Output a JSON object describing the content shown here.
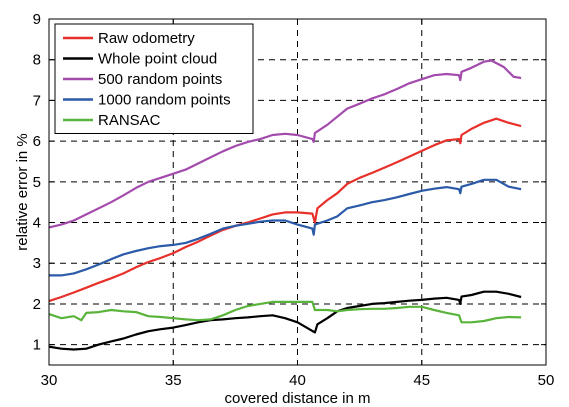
{
  "chart_data": {
    "type": "line",
    "title": "",
    "xlabel": "covered distance in m",
    "ylabel": "relative error in %",
    "xlim": [
      30,
      50
    ],
    "ylim": [
      0.5,
      9
    ],
    "x_ticks": [
      "30",
      "35",
      "40",
      "45",
      "50"
    ],
    "y_ticks": [
      "1",
      "2",
      "3",
      "4",
      "5",
      "6",
      "7",
      "8",
      "9"
    ],
    "x_tick_values": [
      30,
      35,
      40,
      45,
      50
    ],
    "y_tick_values": [
      1,
      2,
      3,
      4,
      5,
      6,
      7,
      8,
      9
    ],
    "grid": true,
    "grid_style": "dashed",
    "legend_position": "top-left",
    "series": [
      {
        "name": "Raw odometry",
        "color": "#e8302a",
        "points": [
          [
            30,
            2.07
          ],
          [
            30.5,
            2.17
          ],
          [
            31,
            2.28
          ],
          [
            31.5,
            2.4
          ],
          [
            32,
            2.52
          ],
          [
            32.5,
            2.63
          ],
          [
            33,
            2.75
          ],
          [
            33.5,
            2.9
          ],
          [
            34,
            3.03
          ],
          [
            34.5,
            3.13
          ],
          [
            35,
            3.25
          ],
          [
            35.5,
            3.4
          ],
          [
            36,
            3.53
          ],
          [
            36.5,
            3.68
          ],
          [
            37,
            3.82
          ],
          [
            37.5,
            3.92
          ],
          [
            38,
            4.0
          ],
          [
            38.5,
            4.1
          ],
          [
            39,
            4.2
          ],
          [
            39.5,
            4.25
          ],
          [
            40,
            4.25
          ],
          [
            40.6,
            4.22
          ],
          [
            40.7,
            4.0
          ],
          [
            40.8,
            4.35
          ],
          [
            41.2,
            4.55
          ],
          [
            41.6,
            4.72
          ],
          [
            42,
            4.95
          ],
          [
            42.5,
            5.1
          ],
          [
            43,
            5.22
          ],
          [
            43.5,
            5.35
          ],
          [
            44,
            5.48
          ],
          [
            44.5,
            5.62
          ],
          [
            45,
            5.76
          ],
          [
            45.5,
            5.9
          ],
          [
            46,
            6.02
          ],
          [
            46.5,
            6.05
          ],
          [
            46.55,
            5.95
          ],
          [
            46.6,
            6.15
          ],
          [
            47,
            6.3
          ],
          [
            47.5,
            6.45
          ],
          [
            48,
            6.55
          ],
          [
            48.5,
            6.45
          ],
          [
            49,
            6.37
          ]
        ]
      },
      {
        "name": "Whole point cloud",
        "color": "#000000",
        "points": [
          [
            30,
            0.95
          ],
          [
            30.5,
            0.9
          ],
          [
            31,
            0.88
          ],
          [
            31.5,
            0.9
          ],
          [
            32,
            1.0
          ],
          [
            32.5,
            1.08
          ],
          [
            33,
            1.15
          ],
          [
            33.5,
            1.25
          ],
          [
            34,
            1.33
          ],
          [
            34.5,
            1.38
          ],
          [
            35,
            1.42
          ],
          [
            35.5,
            1.48
          ],
          [
            36,
            1.55
          ],
          [
            36.5,
            1.6
          ],
          [
            37,
            1.62
          ],
          [
            37.5,
            1.65
          ],
          [
            38,
            1.67
          ],
          [
            38.5,
            1.7
          ],
          [
            39,
            1.72
          ],
          [
            39.5,
            1.65
          ],
          [
            40,
            1.55
          ],
          [
            40.7,
            1.3
          ],
          [
            40.8,
            1.5
          ],
          [
            41.2,
            1.65
          ],
          [
            41.6,
            1.82
          ],
          [
            42,
            1.9
          ],
          [
            42.5,
            1.95
          ],
          [
            43,
            2.0
          ],
          [
            43.5,
            2.02
          ],
          [
            44,
            2.05
          ],
          [
            44.5,
            2.08
          ],
          [
            45,
            2.1
          ],
          [
            45.5,
            2.13
          ],
          [
            46,
            2.15
          ],
          [
            46.5,
            2.1
          ],
          [
            46.55,
            2.0
          ],
          [
            46.6,
            2.18
          ],
          [
            47,
            2.22
          ],
          [
            47.5,
            2.3
          ],
          [
            48,
            2.3
          ],
          [
            48.5,
            2.25
          ],
          [
            49,
            2.17
          ]
        ]
      },
      {
        "name": "500 random points",
        "color": "#a34aad",
        "points": [
          [
            30,
            3.88
          ],
          [
            30.5,
            3.95
          ],
          [
            31,
            4.05
          ],
          [
            31.5,
            4.2
          ],
          [
            32,
            4.35
          ],
          [
            32.5,
            4.5
          ],
          [
            33,
            4.67
          ],
          [
            33.5,
            4.85
          ],
          [
            34,
            5.0
          ],
          [
            34.5,
            5.1
          ],
          [
            35,
            5.2
          ],
          [
            35.5,
            5.3
          ],
          [
            36,
            5.45
          ],
          [
            36.5,
            5.6
          ],
          [
            37,
            5.75
          ],
          [
            37.5,
            5.88
          ],
          [
            38,
            5.98
          ],
          [
            38.5,
            6.05
          ],
          [
            39,
            6.15
          ],
          [
            39.5,
            6.18
          ],
          [
            40,
            6.15
          ],
          [
            40.6,
            6.05
          ],
          [
            40.65,
            5.98
          ],
          [
            40.7,
            6.2
          ],
          [
            41.2,
            6.4
          ],
          [
            41.6,
            6.6
          ],
          [
            42,
            6.8
          ],
          [
            42.5,
            6.92
          ],
          [
            43,
            7.05
          ],
          [
            43.5,
            7.15
          ],
          [
            44,
            7.28
          ],
          [
            44.5,
            7.42
          ],
          [
            45,
            7.52
          ],
          [
            45.5,
            7.62
          ],
          [
            46,
            7.65
          ],
          [
            46.5,
            7.62
          ],
          [
            46.55,
            7.5
          ],
          [
            46.6,
            7.7
          ],
          [
            47,
            7.8
          ],
          [
            47.5,
            7.95
          ],
          [
            47.8,
            7.98
          ],
          [
            48.3,
            7.82
          ],
          [
            48.7,
            7.58
          ],
          [
            49,
            7.55
          ]
        ]
      },
      {
        "name": "1000 random points",
        "color": "#2b5aa8",
        "points": [
          [
            30,
            2.7
          ],
          [
            30.5,
            2.7
          ],
          [
            31,
            2.75
          ],
          [
            31.5,
            2.85
          ],
          [
            32,
            2.97
          ],
          [
            32.5,
            3.1
          ],
          [
            33,
            3.22
          ],
          [
            33.5,
            3.3
          ],
          [
            34,
            3.37
          ],
          [
            34.5,
            3.42
          ],
          [
            35,
            3.45
          ],
          [
            35.5,
            3.5
          ],
          [
            36,
            3.6
          ],
          [
            36.5,
            3.72
          ],
          [
            37,
            3.85
          ],
          [
            37.5,
            3.92
          ],
          [
            38,
            3.97
          ],
          [
            38.5,
            4.02
          ],
          [
            39,
            4.05
          ],
          [
            39.5,
            4.05
          ],
          [
            40,
            3.95
          ],
          [
            40.6,
            3.85
          ],
          [
            40.65,
            3.7
          ],
          [
            40.7,
            3.95
          ],
          [
            41.2,
            4.05
          ],
          [
            41.6,
            4.15
          ],
          [
            42,
            4.35
          ],
          [
            42.5,
            4.42
          ],
          [
            43,
            4.5
          ],
          [
            43.5,
            4.55
          ],
          [
            44,
            4.62
          ],
          [
            44.5,
            4.7
          ],
          [
            45,
            4.78
          ],
          [
            45.5,
            4.83
          ],
          [
            46,
            4.87
          ],
          [
            46.5,
            4.82
          ],
          [
            46.55,
            4.72
          ],
          [
            46.6,
            4.88
          ],
          [
            47,
            4.95
          ],
          [
            47.5,
            5.05
          ],
          [
            48,
            5.05
          ],
          [
            48.5,
            4.88
          ],
          [
            49,
            4.82
          ]
        ]
      },
      {
        "name": "RANSAC",
        "color": "#5ab43c",
        "points": [
          [
            30,
            1.75
          ],
          [
            30.5,
            1.65
          ],
          [
            31,
            1.7
          ],
          [
            31.3,
            1.6
          ],
          [
            31.5,
            1.78
          ],
          [
            32,
            1.8
          ],
          [
            32.5,
            1.85
          ],
          [
            33,
            1.82
          ],
          [
            33.5,
            1.8
          ],
          [
            34,
            1.7
          ],
          [
            34.5,
            1.68
          ],
          [
            35,
            1.65
          ],
          [
            35.5,
            1.62
          ],
          [
            36,
            1.6
          ],
          [
            36.5,
            1.62
          ],
          [
            37,
            1.72
          ],
          [
            37.5,
            1.85
          ],
          [
            38,
            1.95
          ],
          [
            38.5,
            2.0
          ],
          [
            39,
            2.05
          ],
          [
            39.5,
            2.05
          ],
          [
            40,
            2.05
          ],
          [
            40.6,
            2.05
          ],
          [
            40.7,
            1.85
          ],
          [
            41.2,
            1.85
          ],
          [
            41.6,
            1.82
          ],
          [
            42,
            1.85
          ],
          [
            42.5,
            1.87
          ],
          [
            43,
            1.88
          ],
          [
            43.5,
            1.88
          ],
          [
            44,
            1.9
          ],
          [
            44.5,
            1.93
          ],
          [
            45,
            1.93
          ],
          [
            45.5,
            1.85
          ],
          [
            46,
            1.78
          ],
          [
            46.5,
            1.72
          ],
          [
            46.6,
            1.55
          ],
          [
            47,
            1.55
          ],
          [
            47.5,
            1.58
          ],
          [
            48,
            1.65
          ],
          [
            48.5,
            1.68
          ],
          [
            49,
            1.67
          ]
        ]
      }
    ]
  }
}
